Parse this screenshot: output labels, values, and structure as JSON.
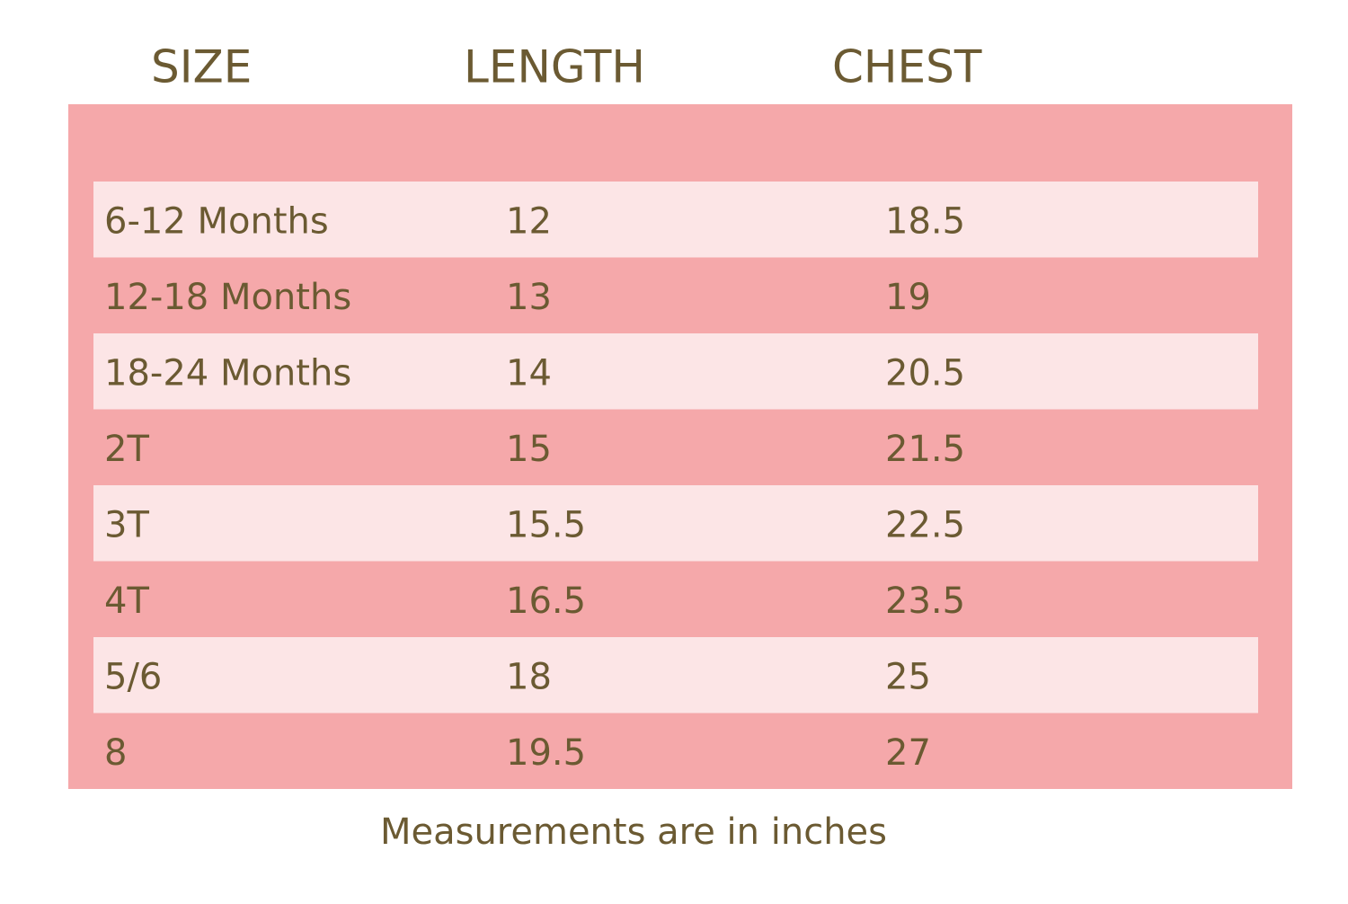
{
  "table": {
    "headers": [
      "SIZE",
      "LENGTH",
      "CHEST"
    ],
    "rows": [
      [
        "6-12 Months",
        "12",
        "18.5"
      ],
      [
        "12-18 Months",
        "13",
        "19"
      ],
      [
        "18-24 Months",
        "14",
        "20.5"
      ],
      [
        "2T",
        "15",
        "21.5"
      ],
      [
        "3T",
        "15.5",
        "22.5"
      ],
      [
        "4T",
        "16.5",
        "23.5"
      ],
      [
        "5/6",
        "18",
        "25"
      ],
      [
        "8",
        "19.5",
        "27"
      ]
    ]
  },
  "footer": {
    "note": "Measurements are in inches"
  }
}
